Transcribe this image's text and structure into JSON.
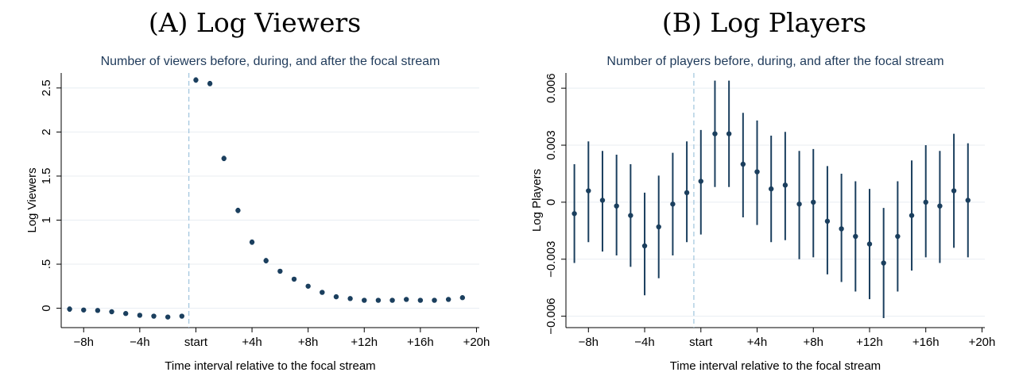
{
  "panels": [
    {
      "id": "a",
      "panel_title": "(A) Log Viewers",
      "chart_data": {
        "type": "scatter",
        "title": "Number of viewers before, during, and after the focal stream",
        "xlabel": "Time interval relative to the focal stream",
        "ylabel": "Log Viewers",
        "xlim": [
          -9.6,
          20.2
        ],
        "ylim": [
          -0.22,
          2.67
        ],
        "x_ticks": [
          -8,
          -4,
          0,
          4,
          8,
          12,
          16,
          20
        ],
        "x_tick_labels": [
          "−8h",
          "−4h",
          "start",
          "+4h",
          "+8h",
          "+12h",
          "+16h",
          "+20h"
        ],
        "y_ticks": [
          0,
          0.5,
          1,
          1.5,
          2,
          2.5
        ],
        "y_tick_labels": [
          "0",
          ".5",
          "1",
          "1.5",
          "2",
          "2.5"
        ],
        "grid": true,
        "reference_line_x": -0.5,
        "series": [
          {
            "x": [
              -9,
              -8,
              -7,
              -6,
              -5,
              -4,
              -3,
              -2,
              -1,
              0,
              1,
              2,
              3,
              4,
              5,
              6,
              7,
              8,
              9,
              10,
              11,
              12,
              13,
              14,
              15,
              16,
              17,
              18,
              19
            ],
            "y": [
              -0.01,
              -0.02,
              -0.025,
              -0.04,
              -0.06,
              -0.08,
              -0.09,
              -0.1,
              -0.09,
              2.59,
              2.55,
              1.7,
              1.11,
              0.75,
              0.54,
              0.42,
              0.33,
              0.25,
              0.18,
              0.13,
              0.11,
              0.09,
              0.09,
              0.09,
              0.1,
              0.09,
              0.09,
              0.1,
              0.12
            ],
            "ci_low": [
              -0.04,
              -0.045,
              -0.05,
              -0.065,
              -0.085,
              -0.105,
              -0.115,
              -0.125,
              -0.115,
              2.56,
              2.52,
              1.67,
              1.08,
              0.72,
              0.51,
              0.395,
              0.305,
              0.225,
              0.155,
              0.105,
              0.085,
              0.065,
              0.065,
              0.065,
              0.075,
              0.065,
              0.065,
              0.075,
              0.095
            ],
            "ci_high": [
              0.02,
              0.005,
              0.0,
              -0.015,
              -0.035,
              -0.055,
              -0.065,
              -0.075,
              -0.065,
              2.62,
              2.58,
              1.73,
              1.14,
              0.78,
              0.57,
              0.445,
              0.355,
              0.275,
              0.205,
              0.155,
              0.135,
              0.115,
              0.115,
              0.115,
              0.125,
              0.115,
              0.115,
              0.125,
              0.145
            ]
          }
        ]
      }
    },
    {
      "id": "b",
      "panel_title": "(B) Log Players",
      "chart_data": {
        "type": "scatter",
        "title": "Number of players before, during, and after the focal stream",
        "xlabel": "Time interval relative to the focal stream",
        "ylabel": "Log Players",
        "xlim": [
          -9.6,
          20.2
        ],
        "ylim": [
          -0.0066,
          0.0068
        ],
        "x_ticks": [
          -8,
          -4,
          0,
          4,
          8,
          12,
          16,
          20
        ],
        "x_tick_labels": [
          "−8h",
          "−4h",
          "start",
          "+4h",
          "+8h",
          "+12h",
          "+16h",
          "+20h"
        ],
        "y_ticks": [
          -0.006,
          -0.003,
          0,
          0.003,
          0.006
        ],
        "y_tick_labels": [
          "−0.006",
          "−0.003",
          "0",
          "0.003",
          "0.006"
        ],
        "grid": true,
        "reference_line_x": -0.5,
        "series": [
          {
            "x": [
              -9,
              -8,
              -7,
              -6,
              -5,
              -4,
              -3,
              -2,
              -1,
              0,
              1,
              2,
              3,
              4,
              5,
              6,
              7,
              8,
              9,
              10,
              11,
              12,
              13,
              14,
              15,
              16,
              17,
              18,
              19
            ],
            "y": [
              -0.0006,
              0.0006,
              0.0001,
              -0.0002,
              -0.0007,
              -0.0023,
              -0.0013,
              -0.0001,
              0.0005,
              0.0011,
              0.0036,
              0.0036,
              0.002,
              0.0016,
              0.0007,
              0.0009,
              -0.0001,
              0.0,
              -0.001,
              -0.0014,
              -0.0018,
              -0.0022,
              -0.0032,
              -0.0018,
              -0.0007,
              0.0,
              -0.0002,
              0.0006,
              0.0001
            ],
            "ci_low": [
              -0.0032,
              -0.0021,
              -0.0026,
              -0.0028,
              -0.0034,
              -0.0049,
              -0.004,
              -0.0028,
              -0.0021,
              -0.0017,
              0.0008,
              0.0008,
              -0.0008,
              -0.0012,
              -0.0021,
              -0.002,
              -0.003,
              -0.0029,
              -0.0038,
              -0.0042,
              -0.0047,
              -0.0051,
              -0.0061,
              -0.0047,
              -0.0036,
              -0.0029,
              -0.0032,
              -0.0024,
              -0.0029
            ],
            "ci_high": [
              0.002,
              0.0032,
              0.0027,
              0.0025,
              0.002,
              0.0005,
              0.0014,
              0.0026,
              0.0032,
              0.0038,
              0.0064,
              0.0064,
              0.0047,
              0.0043,
              0.0035,
              0.0037,
              0.0027,
              0.0028,
              0.0019,
              0.0015,
              0.0011,
              0.0007,
              -0.0003,
              0.0011,
              0.0022,
              0.003,
              0.0027,
              0.0036,
              0.0031
            ]
          }
        ]
      }
    }
  ],
  "colors": {
    "marker": "#1b3f5e",
    "ci": "#1b3f5e",
    "title": "#1f3a5a",
    "grid": "#e8edf2",
    "axis": "#000000",
    "reference": "#9fc4dd"
  }
}
